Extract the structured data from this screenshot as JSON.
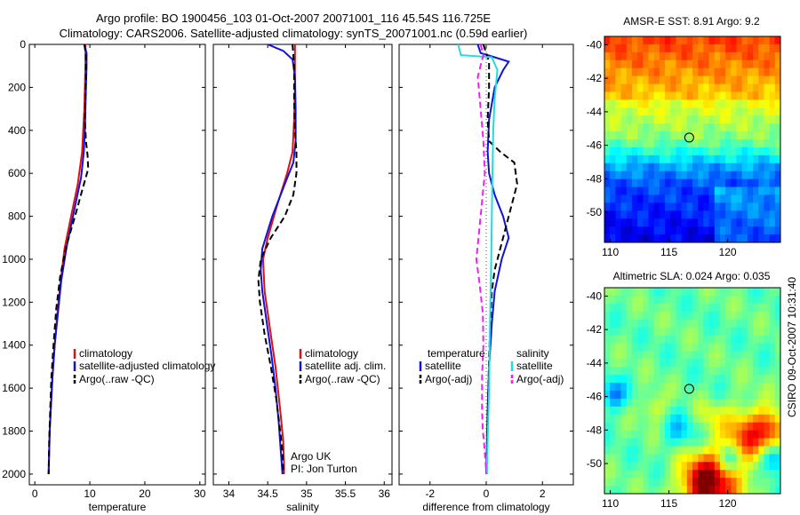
{
  "header": {
    "line1": "Argo profile: BO 1900456_103 01-Oct-2007 20071001_116 45.54S 116.725E",
    "line2": "Climatology: CARS2006. Satellite-adjusted climatology: synTS_20071001.nc (0.59d earlier)"
  },
  "side_label": "CSIRO 09-Oct-2007 10:31:40",
  "colors": {
    "climatology": "#dd1111",
    "satellite": "#1111dd",
    "argo": "#000000",
    "salinity_satellite": "#22dddd",
    "salinity_argo": "#ee22ee"
  },
  "chart_data": [
    {
      "type": "line",
      "xlabel": "temperature",
      "ylabel": "",
      "xlim": [
        -1,
        31
      ],
      "ylim": [
        2050,
        0
      ],
      "xticks": [
        "0",
        "10",
        "20",
        "30"
      ],
      "yticks": [
        "0",
        "200",
        "400",
        "600",
        "800",
        "1000",
        "1200",
        "1400",
        "1600",
        "1800",
        "2000"
      ],
      "legend": {
        "position": "bottom-right",
        "entries": [
          "climatology",
          "satellite-adjusted climatology",
          "Argo(..raw -QC)"
        ]
      },
      "series": [
        {
          "name": "climatology",
          "color_key": "climatology",
          "dash": false,
          "x": [
            9.2,
            9.2,
            9.1,
            9.0,
            8.8,
            8.6,
            7.8,
            6.6,
            5.4,
            4.7,
            4.1,
            3.6,
            3.2,
            2.9,
            2.7,
            2.6,
            2.5
          ],
          "y": [
            0,
            100,
            200,
            300,
            400,
            500,
            650,
            800,
            950,
            1100,
            1250,
            1400,
            1550,
            1700,
            1800,
            1900,
            2000
          ]
        },
        {
          "name": "satellite-adjusted climatology",
          "color_key": "satellite",
          "dash": false,
          "x": [
            9.0,
            9.4,
            9.4,
            9.3,
            9.2,
            9.1,
            8.9,
            8.4,
            7.1,
            5.8,
            4.8,
            4.2,
            3.6,
            3.2,
            2.9,
            2.7,
            2.6,
            2.5
          ],
          "y": [
            0,
            40,
            100,
            200,
            300,
            400,
            500,
            620,
            780,
            940,
            1100,
            1250,
            1400,
            1550,
            1700,
            1800,
            1900,
            2000
          ]
        },
        {
          "name": "Argo(..raw -QC)",
          "color_key": "argo",
          "dash": true,
          "x": [
            9.0,
            9.3,
            9.3,
            9.2,
            9.1,
            9.3,
            9.6,
            9.7,
            8.6,
            7.3,
            5.7,
            4.6,
            3.9,
            3.4,
            3.0,
            2.8,
            2.6,
            2.5
          ],
          "y": [
            0,
            50,
            150,
            250,
            350,
            450,
            520,
            580,
            680,
            800,
            940,
            1080,
            1230,
            1400,
            1550,
            1700,
            1850,
            2000
          ]
        }
      ]
    },
    {
      "type": "line",
      "xlabel": "salinity",
      "ylabel": "",
      "xlim": [
        33.8,
        36.1
      ],
      "ylim": [
        2050,
        0
      ],
      "xticks": [
        "34",
        "34.5",
        "35",
        "35.5",
        "36"
      ],
      "legend": {
        "position": "bottom-right",
        "entries": [
          "climatology",
          "satellite adj. clim.",
          "Argo(..raw -QC)"
        ]
      },
      "annotation": [
        "Argo UK",
        "PI: Jon Turton"
      ],
      "series": [
        {
          "name": "climatology",
          "color_key": "climatology",
          "dash": false,
          "x": [
            34.85,
            34.85,
            34.85,
            34.84,
            34.82,
            34.75,
            34.62,
            34.5,
            34.44,
            34.46,
            34.52,
            34.6,
            34.66,
            34.7,
            34.71,
            34.71
          ],
          "y": [
            0,
            100,
            200,
            350,
            500,
            600,
            750,
            900,
            1000,
            1150,
            1300,
            1500,
            1700,
            1850,
            1950,
            2000
          ]
        },
        {
          "name": "satellite adj. clim.",
          "color_key": "satellite",
          "dash": false,
          "x": [
            34.5,
            34.7,
            34.82,
            34.85,
            34.86,
            34.86,
            34.83,
            34.72,
            34.56,
            34.43,
            34.41,
            34.43,
            34.49,
            34.55,
            34.6,
            34.64,
            34.67,
            34.69
          ],
          "y": [
            0,
            30,
            70,
            150,
            300,
            450,
            550,
            650,
            800,
            950,
            1050,
            1150,
            1300,
            1450,
            1600,
            1750,
            1900,
            2000
          ]
        },
        {
          "name": "Argo(..raw -QC)",
          "color_key": "argo",
          "dash": true,
          "x": [
            34.82,
            34.84,
            34.84,
            34.85,
            34.87,
            34.87,
            34.83,
            34.72,
            34.54,
            34.41,
            34.38,
            34.4,
            34.46,
            34.54,
            34.61,
            34.66,
            34.69,
            34.7
          ],
          "y": [
            0,
            100,
            250,
            400,
            500,
            600,
            700,
            800,
            900,
            1000,
            1100,
            1200,
            1350,
            1500,
            1650,
            1800,
            1900,
            2000
          ]
        }
      ]
    },
    {
      "type": "line",
      "xlabel": "difference from climatology",
      "ylabel": "",
      "xlim": [
        -3.1,
        3.1
      ],
      "ylim": [
        2050,
        0
      ],
      "xticks": [
        "-2",
        "0",
        "2"
      ],
      "legend": {
        "position": "bottom",
        "temperature_heading": "temperature",
        "salinity_heading": "salinity",
        "temperature_entries": [
          "satellite",
          "Argo(-adj)"
        ],
        "salinity_entries": [
          "satellite",
          "Argo(-adj)"
        ]
      },
      "series": [
        {
          "name": "temperature satellite",
          "color_key": "satellite",
          "dash": false,
          "x": [
            -0.3,
            -0.2,
            0.3,
            0.8,
            0.6,
            0.3,
            0.1,
            0.05,
            0.1,
            0.3,
            0.6,
            0.8,
            0.55,
            0.3,
            0.2,
            0.1,
            0.05,
            0.02,
            0.0
          ],
          "y": [
            0,
            40,
            60,
            80,
            120,
            200,
            350,
            500,
            600,
            700,
            800,
            900,
            1000,
            1150,
            1300,
            1500,
            1700,
            1900,
            2000
          ]
        },
        {
          "name": "temperature Argo(-adj)",
          "color_key": "argo",
          "dash": true,
          "x": [
            -0.1,
            0.1,
            0.1,
            0.05,
            0.1,
            0.5,
            1.0,
            1.1,
            0.8,
            0.5,
            0.3,
            0.2,
            0.15,
            0.1,
            0.08,
            0.05,
            0.03,
            0.02
          ],
          "y": [
            0,
            80,
            200,
            350,
            450,
            500,
            550,
            650,
            800,
            950,
            1050,
            1150,
            1300,
            1450,
            1600,
            1750,
            1900,
            2000
          ]
        },
        {
          "name": "salinity satellite",
          "color_key": "salinity_satellite",
          "dash": false,
          "x": [
            -1.0,
            -0.9,
            0.2,
            0.4,
            0.3,
            0.25,
            0.22,
            0.2,
            0.18,
            0.15,
            0.12,
            0.1,
            0.06,
            0.03,
            0.02
          ],
          "y": [
            0,
            50,
            60,
            120,
            250,
            400,
            600,
            800,
            1000,
            1200,
            1400,
            1600,
            1800,
            1950,
            2000
          ]
        },
        {
          "name": "salinity Argo(-adj)",
          "color_key": "salinity_argo",
          "dash": true,
          "x": [
            -0.2,
            -0.1,
            -0.3,
            -0.2,
            -0.1,
            -0.05,
            -0.2,
            -0.35,
            -0.25,
            -0.12,
            -0.1,
            -0.15,
            -0.15,
            -0.12,
            -0.08,
            -0.05,
            -0.02,
            0.0
          ],
          "y": [
            0,
            50,
            150,
            300,
            450,
            600,
            800,
            1000,
            1100,
            1250,
            1400,
            1550,
            1700,
            1800,
            1850,
            1900,
            1950,
            2000
          ]
        }
      ]
    },
    {
      "type": "heatmap",
      "title": "AMSR-E SST: 8.91 Argo: 9.2",
      "xlim": [
        109.5,
        124.5
      ],
      "ylim": [
        -51.8,
        -39.5
      ],
      "xticks": [
        "110",
        "115",
        "120"
      ],
      "yticks": [
        "-40",
        "-42",
        "-44",
        "-46",
        "-48",
        "-50"
      ],
      "profile_location": {
        "lon": 116.725,
        "lat": -45.54
      },
      "colormap": "jet",
      "field": "sst",
      "rows": 26,
      "cols": 32
    },
    {
      "type": "heatmap",
      "title": "Altimetric SLA: 0.024 Argo: 0.035",
      "xlim": [
        109.5,
        124.5
      ],
      "ylim": [
        -51.8,
        -39.5
      ],
      "xticks": [
        "110",
        "115",
        "120"
      ],
      "yticks": [
        "-40",
        "-42",
        "-44",
        "-46",
        "-48",
        "-50"
      ],
      "profile_location": {
        "lon": 116.725,
        "lat": -45.54
      },
      "colormap": "jet",
      "field": "sla",
      "rows": 26,
      "cols": 32
    }
  ]
}
